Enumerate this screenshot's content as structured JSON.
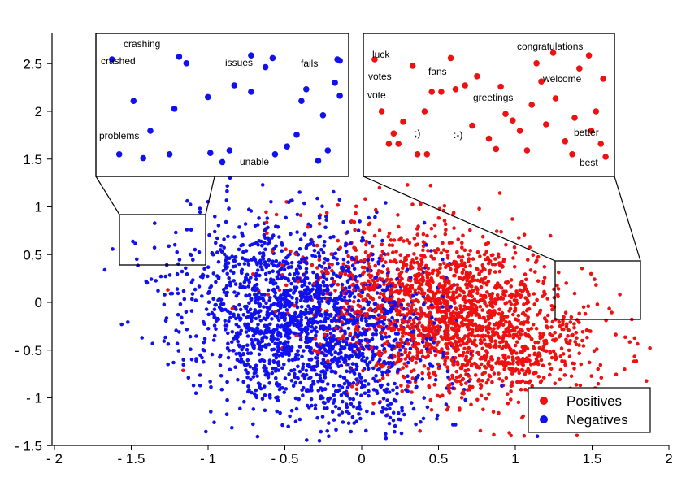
{
  "chart_data": {
    "type": "scatter",
    "xlim": [
      -2,
      2
    ],
    "ylim": [
      -1.5,
      2.75
    ],
    "x_ticks": [
      -2,
      -1.5,
      -1,
      -0.5,
      0,
      0.5,
      1,
      1.5,
      2
    ],
    "x_tick_labels": [
      "- 2",
      "- 1.5",
      "- 1",
      "- 0.5",
      "0",
      "0.5",
      "1",
      "1.5",
      "2"
    ],
    "y_ticks": [
      -1.5,
      -1,
      -0.5,
      0,
      0.5,
      1,
      1.5,
      2,
      2.5
    ],
    "y_tick_labels": [
      "- 1.5",
      "- 1",
      "- 0.5",
      "0",
      "0.5",
      "1",
      "1.5",
      "2",
      "2.5"
    ],
    "grid": false,
    "legend_position": "bottom-right",
    "series": [
      {
        "name": "Positives",
        "color": "#ee1111",
        "count": 2000,
        "center": [
          0.6,
          -0.15
        ],
        "spread": [
          0.45,
          0.45
        ],
        "correlation": -0.35
      },
      {
        "name": "Negatives",
        "color": "#1111ee",
        "count": 2000,
        "center": [
          -0.35,
          -0.2
        ],
        "spread": [
          0.4,
          0.5
        ],
        "correlation": -0.3
      }
    ],
    "zoom_insets": [
      {
        "name": "negative-words",
        "series": "Negatives",
        "source_region": {
          "x": [
            -1.58,
            -1.02
          ],
          "y": [
            0.43,
            0.96
          ]
        },
        "points": [
          [
            0.07,
            0.12
          ],
          [
            0.17,
            0.09
          ],
          [
            0.28,
            0.12
          ],
          [
            0.3,
            0.47
          ],
          [
            0.32,
            0.87
          ],
          [
            0.35,
            0.82
          ],
          [
            0.45,
            0.13
          ],
          [
            0.53,
            0.15
          ],
          [
            0.62,
            0.88
          ],
          [
            0.68,
            0.79
          ],
          [
            0.71,
            0.86
          ],
          [
            0.77,
            0.18
          ],
          [
            0.81,
            0.27
          ],
          [
            0.83,
            0.53
          ],
          [
            0.85,
            0.62
          ],
          [
            0.9,
            0.07
          ],
          [
            0.92,
            0.42
          ],
          [
            0.94,
            0.15
          ],
          [
            0.97,
            0.67
          ],
          [
            0.98,
            0.85
          ],
          [
            0.99,
            0.84
          ],
          [
            0.99,
            0.57
          ],
          [
            0.13,
            0.53
          ],
          [
            0.5,
            0.06
          ],
          [
            0.72,
            0.12
          ],
          [
            0.04,
            0.85
          ],
          [
            0.55,
            0.65
          ],
          [
            0.62,
            0.6
          ],
          [
            0.44,
            0.56
          ],
          [
            0.2,
            0.3
          ]
        ],
        "words": [
          "crashing",
          "crashed",
          "issues",
          "fails",
          "problems",
          "unable"
        ]
      },
      {
        "name": "positive-words",
        "series": "Positives",
        "source_region": {
          "x": [
            1.25,
            1.8
          ],
          "y": [
            -0.16,
            0.45
          ]
        },
        "points": [
          [
            0.02,
            0.85
          ],
          [
            0.1,
            0.28
          ],
          [
            0.12,
            0.2
          ],
          [
            0.14,
            0.37
          ],
          [
            0.18,
            0.8
          ],
          [
            0.23,
            0.45
          ],
          [
            0.24,
            0.12
          ],
          [
            0.26,
            0.6
          ],
          [
            0.3,
            0.6
          ],
          [
            0.34,
            0.86
          ],
          [
            0.36,
            0.62
          ],
          [
            0.4,
            0.65
          ],
          [
            0.43,
            0.34
          ],
          [
            0.5,
            0.24
          ],
          [
            0.53,
            0.16
          ],
          [
            0.55,
            0.64
          ],
          [
            0.57,
            0.43
          ],
          [
            0.6,
            0.38
          ],
          [
            0.63,
            0.3
          ],
          [
            0.66,
            0.15
          ],
          [
            0.7,
            0.82
          ],
          [
            0.72,
            0.68
          ],
          [
            0.74,
            0.35
          ],
          [
            0.78,
            0.55
          ],
          [
            0.82,
            0.22
          ],
          [
            0.86,
            0.4
          ],
          [
            0.88,
            0.78
          ],
          [
            0.92,
            0.88
          ],
          [
            0.95,
            0.45
          ],
          [
            0.97,
            0.2
          ],
          [
            0.98,
            0.7
          ],
          [
            0.99,
            0.1
          ],
          [
            0.05,
            0.45
          ],
          [
            0.08,
            0.2
          ],
          [
            0.2,
            0.12
          ],
          [
            0.45,
            0.72
          ],
          [
            0.68,
            0.5
          ],
          [
            0.85,
            0.12
          ],
          [
            0.93,
            0.3
          ],
          [
            0.77,
            0.9
          ]
        ],
        "words": [
          "luck",
          "fans",
          "congratulations",
          "votes",
          "vote",
          "welcome",
          "greetings",
          ";)",
          ":-)",
          "better",
          "best"
        ]
      }
    ]
  },
  "legend": {
    "items": [
      {
        "label": "Positives",
        "color": "#ee1111"
      },
      {
        "label": "Negatives",
        "color": "#1111ee"
      }
    ]
  }
}
